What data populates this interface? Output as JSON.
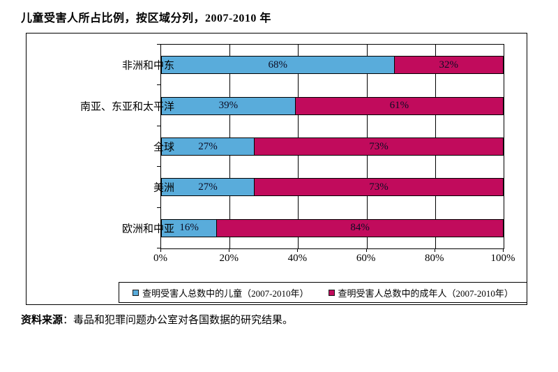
{
  "title": "儿童受害人所占比例，按区域分列，2007-2010 年",
  "chart_data": {
    "type": "bar",
    "orientation": "horizontal",
    "stacked": true,
    "title": "儿童受害人所占比例，按区域分列，2007-2010 年",
    "categories": [
      "非洲和中东",
      "南亚、东亚和太平洋",
      "全球",
      "美洲",
      "欧洲和中亚"
    ],
    "series": [
      {
        "name": "查明受害人总数中的儿童（2007-2010年）",
        "values": [
          68,
          39,
          27,
          27,
          16
        ],
        "color": "#59ACDB"
      },
      {
        "name": "查明受害人总数中的成年人（2007-2010年）",
        "values": [
          32,
          61,
          73,
          73,
          84
        ],
        "color": "#C10B5C"
      }
    ],
    "value_suffix": "%",
    "xlim": [
      0,
      100
    ],
    "x_ticks": [
      "0%",
      "20%",
      "40%",
      "60%",
      "80%",
      "100%"
    ],
    "grid": true,
    "legend_position": "bottom-inside"
  },
  "source": {
    "label": "资料来源",
    "text": "：毒品和犯罪问题办公室对各国数据的研究结果。"
  }
}
